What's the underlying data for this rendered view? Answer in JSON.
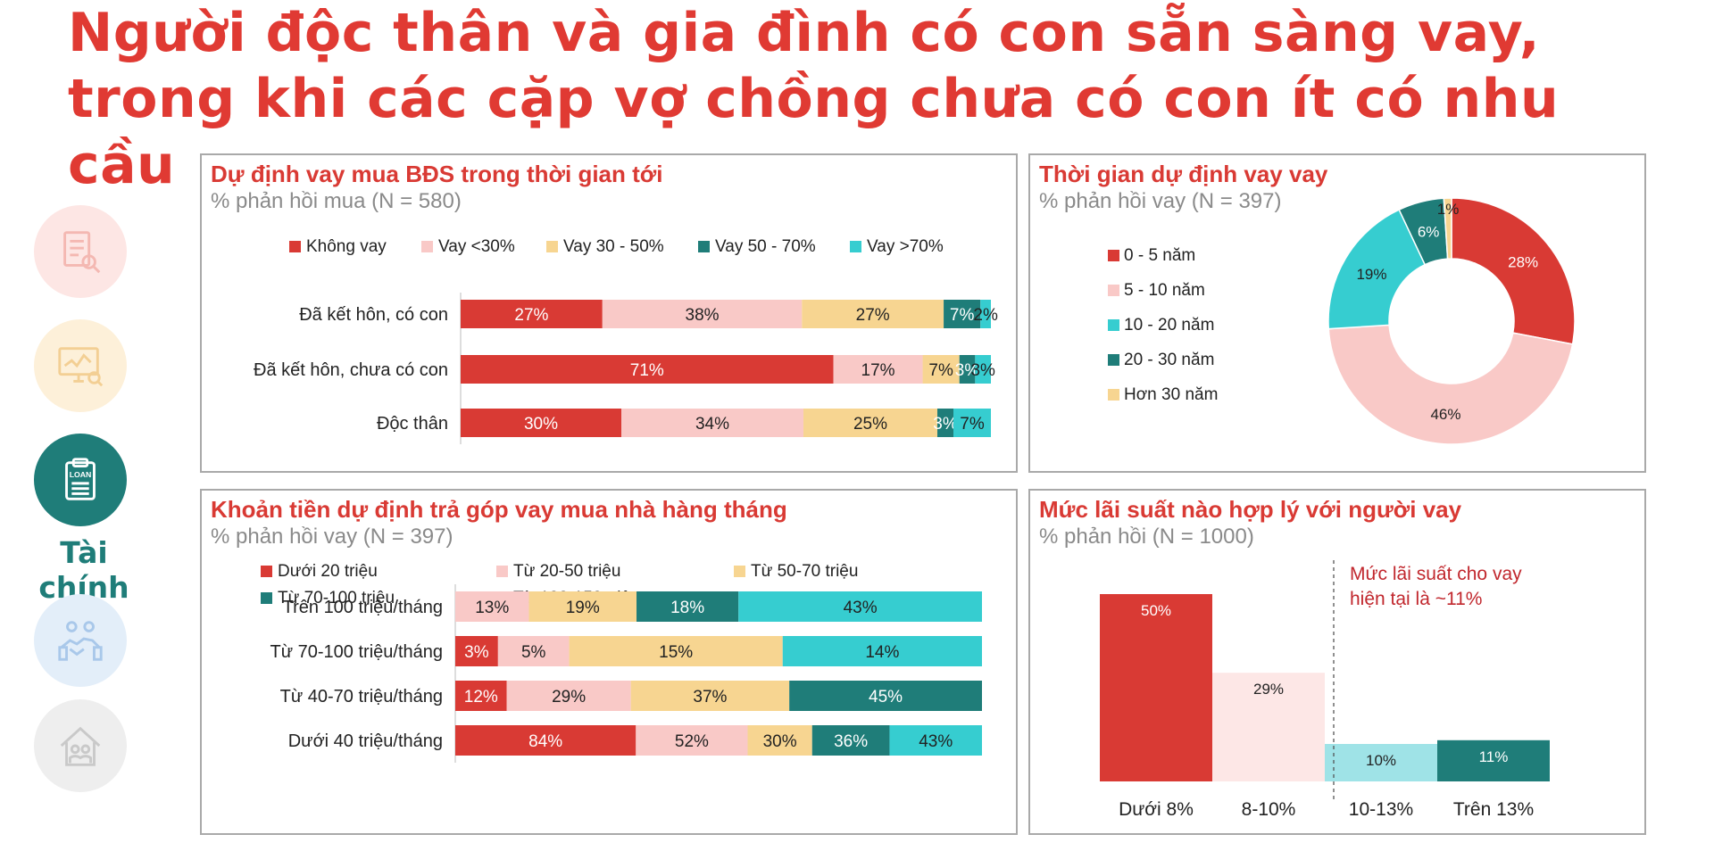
{
  "title": "Người độc thân và gia đình có con sẵn sàng vay, trong khi các cặp vợ chồng chưa có con ít có nhu cầu",
  "sidebar": {
    "items": [
      {
        "icon": "document-search-icon",
        "bg": "#fde6e4",
        "fg": "#f4b8b2"
      },
      {
        "icon": "monitor-chart-icon",
        "bg": "#fdf0d9",
        "fg": "#f3cf94"
      },
      {
        "icon": "loan-clipboard-icon",
        "bg": "#1f7d79",
        "fg": "#ffffff",
        "text": "LOAN"
      },
      {
        "icon": "handshake-icon",
        "bg": "#e3eef9",
        "fg": "#a9c8ea"
      },
      {
        "icon": "house-family-icon",
        "bg": "#eeeeee",
        "fg": "#c9c9c9"
      }
    ],
    "active_label": "Tài chính"
  },
  "chart_data": [
    {
      "type": "bar",
      "orientation": "horizontal-stacked",
      "title": "Dự định vay mua BĐS trong thời gian tới",
      "subtitle": "% phản hồi mua (N = 580)",
      "categories": [
        "Đã kết hôn, có con",
        "Đã kết hôn, chưa có con",
        "Độc thân"
      ],
      "series": [
        {
          "name": "Không vay",
          "color": "#d93a34",
          "values": [
            27,
            71,
            30
          ],
          "labels": [
            "27%",
            "71%",
            "30%"
          ]
        },
        {
          "name": "Vay <30%",
          "color": "#f9c9c7",
          "values": [
            38,
            17,
            34
          ],
          "labels": [
            "38%",
            "17%",
            "34%"
          ]
        },
        {
          "name": "Vay 30 - 50%",
          "color": "#f7d591",
          "values": [
            27,
            7,
            25
          ],
          "labels": [
            "27%",
            "7%",
            "25%"
          ]
        },
        {
          "name": "Vay 50 - 70%",
          "color": "#1f7d79",
          "values": [
            7,
            3,
            3
          ],
          "labels": [
            "7%",
            "3%",
            "3%"
          ]
        },
        {
          "name": "Vay >70%",
          "color": "#36cdd0",
          "values": [
            2,
            3,
            7
          ],
          "labels": [
            "2%",
            "3%",
            "7%"
          ]
        }
      ],
      "legend": "top"
    },
    {
      "type": "pie",
      "variant": "donut",
      "title": "Thời gian dự định vay vay",
      "subtitle": "% phản hồi vay (N = 397)",
      "slices": [
        {
          "name": "0 - 5 năm",
          "value": 28,
          "label": "28%",
          "color": "#d93a34"
        },
        {
          "name": "5 - 10 năm",
          "value": 46,
          "label": "46%",
          "color": "#f9c9c7"
        },
        {
          "name": "10 - 20 năm",
          "value": 19,
          "label": "19%",
          "color": "#36cdd0"
        },
        {
          "name": "20 - 30 năm",
          "value": 6,
          "label": "6%",
          "color": "#1f7d79"
        },
        {
          "name": "Hơn 30 năm",
          "value": 1,
          "label": "1%",
          "color": "#f7d591"
        }
      ],
      "legend": "left"
    },
    {
      "type": "bar",
      "orientation": "horizontal-stacked",
      "title": "Khoản tiền dự định trả góp vay mua nhà hàng tháng",
      "subtitle": "% phản hồi vay (N = 397)",
      "categories": [
        "Trên 100 triệu/tháng",
        "Từ 70-100 triệu/tháng",
        "Từ 40-70 triệu/tháng",
        "Dưới 40 triệu/tháng"
      ],
      "series": [
        {
          "name": "Dưới 20 triệu",
          "color": "#d93a34",
          "values": [
            0,
            3,
            12,
            84
          ],
          "labels": [
            "",
            "3%",
            "12%",
            "84%"
          ]
        },
        {
          "name": "Từ 20-50 triệu",
          "color": "#f9c9c7",
          "values": [
            13,
            5,
            29,
            52
          ],
          "labels": [
            "13%",
            "5%",
            "29%",
            "52%"
          ]
        },
        {
          "name": "Từ 50-70 triệu",
          "color": "#f7d591",
          "values": [
            19,
            15,
            37,
            30
          ],
          "labels": [
            "19%",
            "15%",
            "37%",
            "30%"
          ]
        },
        {
          "name": "Từ 70-100 triệu",
          "color": "#1f7d79",
          "values": [
            18,
            0,
            45,
            36
          ],
          "labels": [
            "18%",
            "",
            "45%",
            "36%"
          ]
        },
        {
          "name": "Từ 100-150 triệu",
          "color": "#36cdd0",
          "values": [
            43,
            14,
            0,
            43
          ],
          "labels": [
            "43%",
            "14%",
            "",
            "43%"
          ]
        }
      ],
      "legend": "top"
    },
    {
      "type": "bar",
      "title": "Mức lãi suất nào hợp lý với người vay",
      "subtitle": "% phản hồi (N = 1000)",
      "categories": [
        "Dưới 8%",
        "8-10%",
        "10-13%",
        "Trên 13%"
      ],
      "values": [
        50,
        29,
        10,
        11
      ],
      "labels": [
        "50%",
        "29%",
        "10%",
        "11%"
      ],
      "colors": [
        "#d93a34",
        "#fde7e6",
        "#9fe3e7",
        "#1f7d79"
      ],
      "annotation": "Mức lãi suất cho vay hiện tại là ~11%",
      "annotation_color": "#c1272d",
      "ylim": [
        0,
        55
      ]
    }
  ]
}
